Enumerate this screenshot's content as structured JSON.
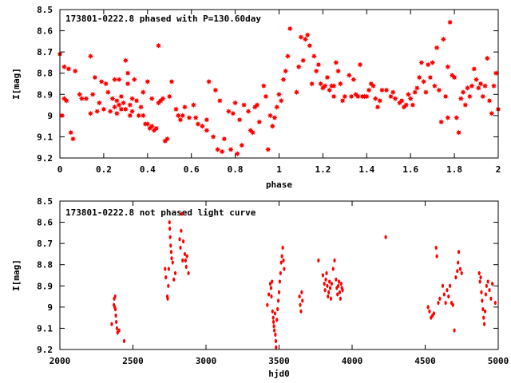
{
  "chart_data": [
    {
      "type": "scatter",
      "title": "173801-0222.8 phased with P=130.60day",
      "xlabel": "phase",
      "ylabel": "I[mag]",
      "xlim": [
        0,
        2
      ],
      "ylim": [
        9.2,
        8.5
      ],
      "y_inverted": true,
      "grid": false,
      "marker_color": "#ff0000",
      "marker": "star",
      "xticks": [
        "0",
        "0.2",
        "0.4",
        "0.6",
        "0.8",
        "1",
        "1.2",
        "1.4",
        "1.6",
        "1.8",
        "2"
      ],
      "yticks": [
        "8.5",
        "8.6",
        "8.7",
        "8.8",
        "8.9",
        "9",
        "9.1",
        "9.2"
      ],
      "points": [
        [
          0.0,
          8.71
        ],
        [
          0.01,
          9.0
        ],
        [
          0.02,
          8.92
        ],
        [
          0.02,
          8.77
        ],
        [
          0.03,
          8.93
        ],
        [
          0.04,
          8.78
        ],
        [
          0.05,
          9.08
        ],
        [
          0.06,
          9.11
        ],
        [
          0.07,
          8.79
        ],
        [
          0.09,
          8.9
        ],
        [
          0.1,
          8.92
        ],
        [
          0.12,
          8.92
        ],
        [
          0.14,
          8.99
        ],
        [
          0.14,
          8.72
        ],
        [
          0.15,
          8.9
        ],
        [
          0.16,
          8.82
        ],
        [
          0.17,
          8.98
        ],
        [
          0.18,
          8.94
        ],
        [
          0.19,
          8.84
        ],
        [
          0.2,
          8.97
        ],
        [
          0.21,
          8.85
        ],
        [
          0.22,
          8.89
        ],
        [
          0.23,
          8.98
        ],
        [
          0.24,
          8.92
        ],
        [
          0.25,
          8.83
        ],
        [
          0.25,
          8.96
        ],
        [
          0.26,
          8.93
        ],
        [
          0.26,
          8.99
        ],
        [
          0.27,
          8.95
        ],
        [
          0.27,
          8.83
        ],
        [
          0.28,
          8.97
        ],
        [
          0.28,
          8.91
        ],
        [
          0.29,
          8.94
        ],
        [
          0.3,
          8.74
        ],
        [
          0.3,
          8.97
        ],
        [
          0.31,
          8.8
        ],
        [
          0.31,
          8.85
        ],
        [
          0.32,
          8.95
        ],
        [
          0.32,
          9.0
        ],
        [
          0.33,
          8.98
        ],
        [
          0.33,
          8.92
        ],
        [
          0.34,
          8.83
        ],
        [
          0.35,
          8.93
        ],
        [
          0.36,
          9.0
        ],
        [
          0.37,
          8.96
        ],
        [
          0.38,
          9.0
        ],
        [
          0.38,
          8.89
        ],
        [
          0.39,
          9.04
        ],
        [
          0.4,
          9.04
        ],
        [
          0.4,
          8.84
        ],
        [
          0.41,
          9.06
        ],
        [
          0.42,
          9.05
        ],
        [
          0.42,
          8.92
        ],
        [
          0.43,
          9.07
        ],
        [
          0.44,
          9.06
        ],
        [
          0.45,
          8.94
        ],
        [
          0.45,
          8.67
        ],
        [
          0.46,
          8.93
        ],
        [
          0.47,
          8.92
        ],
        [
          0.48,
          9.12
        ],
        [
          0.49,
          9.11
        ],
        [
          0.5,
          8.91
        ],
        [
          0.51,
          8.84
        ],
        [
          0.53,
          8.97
        ],
        [
          0.54,
          9.0
        ],
        [
          0.55,
          9.02
        ],
        [
          0.56,
          9.0
        ],
        [
          0.57,
          8.96
        ],
        [
          0.59,
          9.01
        ],
        [
          0.61,
          8.95
        ],
        [
          0.62,
          9.01
        ],
        [
          0.63,
          9.04
        ],
        [
          0.65,
          9.05
        ],
        [
          0.67,
          9.07
        ],
        [
          0.67,
          9.02
        ],
        [
          0.68,
          8.84
        ],
        [
          0.7,
          9.1
        ],
        [
          0.71,
          8.88
        ],
        [
          0.72,
          9.16
        ],
        [
          0.73,
          8.93
        ],
        [
          0.74,
          9.17
        ],
        [
          0.75,
          9.11
        ],
        [
          0.77,
          8.98
        ],
        [
          0.78,
          9.16
        ],
        [
          0.79,
          8.99
        ],
        [
          0.8,
          8.94
        ],
        [
          0.81,
          9.18
        ],
        [
          0.82,
          9.02
        ],
        [
          0.83,
          9.14
        ],
        [
          0.84,
          8.95
        ],
        [
          0.86,
          8.98
        ],
        [
          0.87,
          9.07
        ],
        [
          0.88,
          9.08
        ],
        [
          0.89,
          8.96
        ],
        [
          0.9,
          8.95
        ],
        [
          0.91,
          9.03
        ],
        [
          0.93,
          8.86
        ],
        [
          0.94,
          8.91
        ],
        [
          0.95,
          9.16
        ],
        [
          0.96,
          9.0
        ],
        [
          0.97,
          9.05
        ],
        [
          0.98,
          9.01
        ],
        [
          0.99,
          8.96
        ],
        [
          1.0,
          8.9
        ],
        [
          1.01,
          8.93
        ],
        [
          1.02,
          8.83
        ],
        [
          1.03,
          8.79
        ],
        [
          1.04,
          8.72
        ],
        [
          1.05,
          8.59
        ],
        [
          1.08,
          8.89
        ],
        [
          1.09,
          8.77
        ],
        [
          1.1,
          8.63
        ],
        [
          1.11,
          8.74
        ],
        [
          1.12,
          8.64
        ],
        [
          1.13,
          8.62
        ],
        [
          1.14,
          8.67
        ],
        [
          1.15,
          8.85
        ],
        [
          1.16,
          8.72
        ],
        [
          1.17,
          8.79
        ],
        [
          1.18,
          8.76
        ],
        [
          1.19,
          8.85
        ],
        [
          1.2,
          8.87
        ],
        [
          1.21,
          8.86
        ],
        [
          1.22,
          8.82
        ],
        [
          1.23,
          8.88
        ],
        [
          1.24,
          8.86
        ],
        [
          1.25,
          8.86
        ],
        [
          1.25,
          8.91
        ],
        [
          1.26,
          8.75
        ],
        [
          1.27,
          8.79
        ],
        [
          1.28,
          8.85
        ],
        [
          1.29,
          8.93
        ],
        [
          1.3,
          8.91
        ],
        [
          1.32,
          8.81
        ],
        [
          1.33,
          8.91
        ],
        [
          1.34,
          8.83
        ],
        [
          1.35,
          8.9
        ],
        [
          1.36,
          8.91
        ],
        [
          1.37,
          8.76
        ],
        [
          1.38,
          8.91
        ],
        [
          1.39,
          8.91
        ],
        [
          1.4,
          8.91
        ],
        [
          1.41,
          8.88
        ],
        [
          1.42,
          8.85
        ],
        [
          1.43,
          8.86
        ],
        [
          1.44,
          8.92
        ],
        [
          1.45,
          8.96
        ],
        [
          1.46,
          8.93
        ],
        [
          1.47,
          8.88
        ],
        [
          1.49,
          8.88
        ],
        [
          1.51,
          8.91
        ],
        [
          1.52,
          8.89
        ],
        [
          1.53,
          8.92
        ],
        [
          1.55,
          8.94
        ],
        [
          1.56,
          8.93
        ],
        [
          1.57,
          8.96
        ],
        [
          1.58,
          8.95
        ],
        [
          1.59,
          8.9
        ],
        [
          1.6,
          8.92
        ],
        [
          1.61,
          8.95
        ],
        [
          1.62,
          8.89
        ],
        [
          1.63,
          8.87
        ],
        [
          1.64,
          8.82
        ],
        [
          1.65,
          8.75
        ],
        [
          1.66,
          8.84
        ],
        [
          1.67,
          8.89
        ],
        [
          1.68,
          8.76
        ],
        [
          1.69,
          8.82
        ],
        [
          1.7,
          8.75
        ],
        [
          1.71,
          8.86
        ],
        [
          1.72,
          8.68
        ],
        [
          1.73,
          8.88
        ],
        [
          1.74,
          9.03
        ],
        [
          1.75,
          8.64
        ],
        [
          1.76,
          8.91
        ],
        [
          1.77,
          9.01
        ],
        [
          1.77,
          8.77
        ],
        [
          1.78,
          8.56
        ],
        [
          1.79,
          8.81
        ],
        [
          1.8,
          8.82
        ],
        [
          1.81,
          9.01
        ],
        [
          1.82,
          9.08
        ],
        [
          1.83,
          8.92
        ],
        [
          1.84,
          8.89
        ],
        [
          1.85,
          8.95
        ],
        [
          1.86,
          8.87
        ],
        [
          1.87,
          8.91
        ],
        [
          1.88,
          8.86
        ],
        [
          1.89,
          8.78
        ],
        [
          1.9,
          8.83
        ],
        [
          1.91,
          8.87
        ],
        [
          1.92,
          8.85
        ],
        [
          1.93,
          8.91
        ],
        [
          1.94,
          8.86
        ],
        [
          1.95,
          8.73
        ],
        [
          1.96,
          8.93
        ],
        [
          1.97,
          8.99
        ],
        [
          1.98,
          8.86
        ],
        [
          1.99,
          8.8
        ],
        [
          2.0,
          8.97
        ]
      ]
    },
    {
      "type": "scatter",
      "title": "173801-0222.8 not phased light curve",
      "xlabel": "hjd0",
      "ylabel": "I[mag]",
      "xlim": [
        2000,
        5000
      ],
      "ylim": [
        9.2,
        8.5
      ],
      "y_inverted": true,
      "grid": false,
      "marker_color": "#ff0000",
      "marker": "dot",
      "xticks": [
        "2000",
        "2500",
        "3000",
        "3500",
        "4000",
        "4500",
        "5000"
      ],
      "yticks": [
        "8.5",
        "8.6",
        "8.7",
        "8.8",
        "8.9",
        "9",
        "9.1",
        "9.2"
      ],
      "points": [
        [
          2355,
          9.08
        ],
        [
          2370,
          8.99
        ],
        [
          2372,
          8.96
        ],
        [
          2375,
          9.0
        ],
        [
          2378,
          8.95
        ],
        [
          2380,
          9.01
        ],
        [
          2383,
          9.04
        ],
        [
          2386,
          9.07
        ],
        [
          2390,
          9.1
        ],
        [
          2395,
          9.12
        ],
        [
          2405,
          9.11
        ],
        [
          2440,
          9.16
        ],
        [
          2720,
          8.82
        ],
        [
          2725,
          8.86
        ],
        [
          2735,
          8.95
        ],
        [
          2738,
          8.96
        ],
        [
          2742,
          8.9
        ],
        [
          2745,
          8.82
        ],
        [
          2750,
          8.6
        ],
        [
          2752,
          8.63
        ],
        [
          2755,
          8.67
        ],
        [
          2758,
          8.71
        ],
        [
          2762,
          8.74
        ],
        [
          2765,
          8.77
        ],
        [
          2772,
          8.79
        ],
        [
          2780,
          8.87
        ],
        [
          2790,
          8.84
        ],
        [
          2820,
          8.68
        ],
        [
          2825,
          8.72
        ],
        [
          2830,
          8.64
        ],
        [
          2835,
          8.56
        ],
        [
          2840,
          8.78
        ],
        [
          2845,
          8.69
        ],
        [
          2855,
          8.75
        ],
        [
          2860,
          8.78
        ],
        [
          2865,
          8.81
        ],
        [
          2870,
          8.76
        ],
        [
          2880,
          8.84
        ],
        [
          3420,
          8.99
        ],
        [
          3430,
          8.94
        ],
        [
          3440,
          8.89
        ],
        [
          3445,
          8.91
        ],
        [
          3448,
          8.95
        ],
        [
          3452,
          8.88
        ],
        [
          3455,
          9.02
        ],
        [
          3460,
          9.05
        ],
        [
          3462,
          9.07
        ],
        [
          3465,
          9.09
        ],
        [
          3468,
          9.11
        ],
        [
          3472,
          9.03
        ],
        [
          3475,
          9.13
        ],
        [
          3478,
          9.16
        ],
        [
          3480,
          9.19
        ],
        [
          3485,
          9.06
        ],
        [
          3490,
          9.01
        ],
        [
          3495,
          8.97
        ],
        [
          3500,
          8.93
        ],
        [
          3505,
          8.88
        ],
        [
          3510,
          8.84
        ],
        [
          3515,
          8.79
        ],
        [
          3520,
          8.76
        ],
        [
          3525,
          8.72
        ],
        [
          3530,
          8.78
        ],
        [
          3535,
          8.82
        ],
        [
          3640,
          8.95
        ],
        [
          3645,
          8.99
        ],
        [
          3650,
          9.02
        ],
        [
          3655,
          8.93
        ],
        [
          3660,
          8.97
        ],
        [
          3770,
          8.78
        ],
        [
          3800,
          8.85
        ],
        [
          3810,
          8.89
        ],
        [
          3815,
          8.92
        ],
        [
          3820,
          8.87
        ],
        [
          3825,
          8.84
        ],
        [
          3830,
          8.9
        ],
        [
          3835,
          8.95
        ],
        [
          3840,
          8.93
        ],
        [
          3845,
          8.88
        ],
        [
          3850,
          8.91
        ],
        [
          3855,
          8.96
        ],
        [
          3860,
          8.89
        ],
        [
          3870,
          8.82
        ],
        [
          3880,
          8.78
        ],
        [
          3890,
          8.87
        ],
        [
          3895,
          8.91
        ],
        [
          3900,
          8.94
        ],
        [
          3905,
          8.9
        ],
        [
          3910,
          8.88
        ],
        [
          3915,
          8.93
        ],
        [
          3920,
          8.96
        ],
        [
          3925,
          8.89
        ],
        [
          3930,
          8.91
        ],
        [
          3935,
          8.92
        ],
        [
          4230,
          8.67
        ],
        [
          4520,
          9.0
        ],
        [
          4530,
          9.02
        ],
        [
          4540,
          9.05
        ],
        [
          4550,
          9.04
        ],
        [
          4560,
          9.03
        ],
        [
          4575,
          8.72
        ],
        [
          4580,
          8.76
        ],
        [
          4590,
          8.98
        ],
        [
          4600,
          8.96
        ],
        [
          4620,
          8.9
        ],
        [
          4630,
          8.94
        ],
        [
          4640,
          8.98
        ],
        [
          4650,
          8.92
        ],
        [
          4660,
          8.95
        ],
        [
          4670,
          8.9
        ],
        [
          4680,
          8.98
        ],
        [
          4690,
          8.99
        ],
        [
          4700,
          9.11
        ],
        [
          4710,
          8.86
        ],
        [
          4720,
          8.83
        ],
        [
          4725,
          8.79
        ],
        [
          4730,
          8.74
        ],
        [
          4740,
          8.82
        ],
        [
          4750,
          8.84
        ],
        [
          4870,
          8.84
        ],
        [
          4875,
          8.88
        ],
        [
          4880,
          8.86
        ],
        [
          4885,
          8.93
        ],
        [
          4890,
          8.97
        ],
        [
          4895,
          9.01
        ],
        [
          4900,
          9.05
        ],
        [
          4905,
          9.08
        ],
        [
          4910,
          9.02
        ],
        [
          4915,
          8.94
        ],
        [
          4920,
          8.9
        ],
        [
          4930,
          8.88
        ],
        [
          4940,
          8.92
        ],
        [
          4950,
          8.96
        ],
        [
          4960,
          8.89
        ],
        [
          4980,
          8.98
        ]
      ]
    }
  ]
}
